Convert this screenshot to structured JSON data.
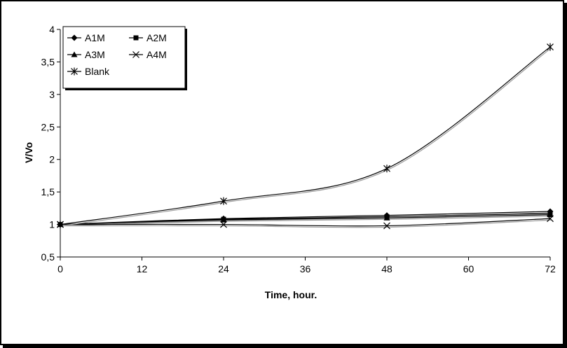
{
  "chart_data": {
    "type": "line",
    "xlabel": "Time, hour.",
    "ylabel": "V/Vo",
    "xlim": [
      0,
      72
    ],
    "ylim": [
      0.5,
      4
    ],
    "xticks": [
      0,
      12,
      24,
      36,
      48,
      60,
      72
    ],
    "yticks": [
      0.5,
      1,
      1.5,
      2,
      2.5,
      3,
      3.5,
      4
    ],
    "ytick_labels": [
      "0,5",
      "1",
      "1,5",
      "2",
      "2,5",
      "3",
      "3,5",
      "4"
    ],
    "grid": false,
    "legend_placement": "top-left",
    "x": [
      0,
      24,
      48,
      72
    ],
    "series": [
      {
        "name": "A1M",
        "values": [
          1.0,
          1.09,
          1.14,
          1.2
        ],
        "marker": "diamond"
      },
      {
        "name": "A2M",
        "values": [
          1.0,
          1.08,
          1.12,
          1.17
        ],
        "marker": "square"
      },
      {
        "name": "A3M",
        "values": [
          1.0,
          1.07,
          1.1,
          1.15
        ],
        "marker": "triangle"
      },
      {
        "name": "A4M",
        "values": [
          1.0,
          1.0,
          0.98,
          1.09
        ],
        "marker": "x"
      },
      {
        "name": "Blank",
        "values": [
          1.0,
          1.36,
          1.86,
          3.73
        ],
        "marker": "star"
      }
    ],
    "line_color": "#000000"
  }
}
